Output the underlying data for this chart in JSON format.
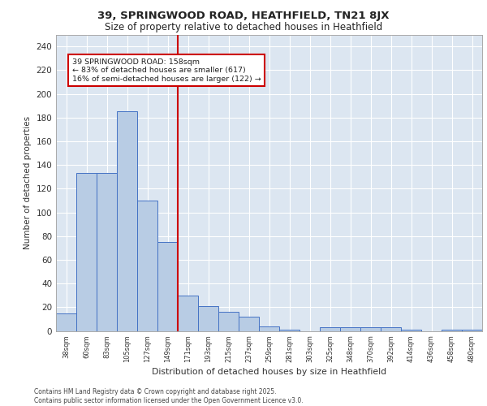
{
  "title1": "39, SPRINGWOOD ROAD, HEATHFIELD, TN21 8JX",
  "title2": "Size of property relative to detached houses in Heathfield",
  "xlabel": "Distribution of detached houses by size in Heathfield",
  "ylabel": "Number of detached properties",
  "categories": [
    "38sqm",
    "60sqm",
    "83sqm",
    "105sqm",
    "127sqm",
    "149sqm",
    "171sqm",
    "193sqm",
    "215sqm",
    "237sqm",
    "259sqm",
    "281sqm",
    "303sqm",
    "325sqm",
    "348sqm",
    "370sqm",
    "392sqm",
    "414sqm",
    "436sqm",
    "458sqm",
    "480sqm"
  ],
  "values": [
    15,
    133,
    133,
    185,
    110,
    75,
    30,
    21,
    16,
    12,
    4,
    1,
    0,
    3,
    3,
    3,
    3,
    1,
    0,
    1,
    1
  ],
  "bar_color": "#b8cce4",
  "bar_edge_color": "#4472c4",
  "background_color": "#dce6f1",
  "vline_x": 5.5,
  "vline_color": "#cc0000",
  "annotation_text": "39 SPRINGWOOD ROAD: 158sqm\n← 83% of detached houses are smaller (617)\n16% of semi-detached houses are larger (122) →",
  "annotation_box_color": "#ffffff",
  "annotation_box_edge": "#cc0000",
  "footer": "Contains HM Land Registry data © Crown copyright and database right 2025.\nContains public sector information licensed under the Open Government Licence v3.0.",
  "ylim": [
    0,
    250
  ],
  "yticks": [
    0,
    20,
    40,
    60,
    80,
    100,
    120,
    140,
    160,
    180,
    200,
    220,
    240
  ]
}
